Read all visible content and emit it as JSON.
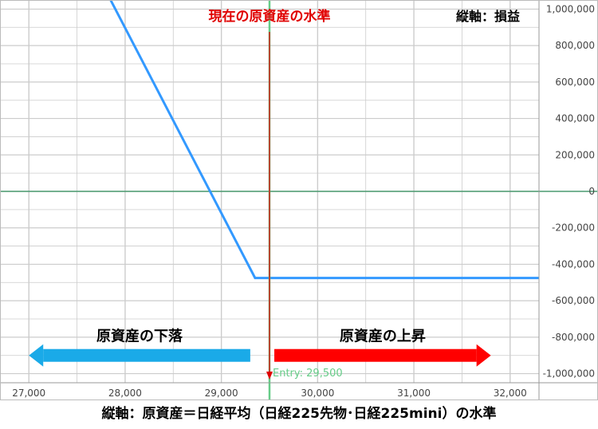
{
  "chart_data": {
    "type": "line",
    "title": "現在の原資産の水準",
    "ylabel": "縦軸：損益",
    "xlabel": "縦軸：原資産＝日経平均（日経225先物･日経225mini）の水準",
    "xlim": [
      26700,
      32300
    ],
    "ylim": [
      -1050000,
      1050000
    ],
    "x_ticks": [
      27000,
      28000,
      29000,
      30000,
      31000,
      32000
    ],
    "x_tick_labels": [
      "27,000",
      "28,000",
      "29,000",
      "30,000",
      "31,000",
      "32,000"
    ],
    "y_ticks": [
      1000000,
      800000,
      600000,
      400000,
      200000,
      0,
      -200000,
      -400000,
      -600000,
      -800000,
      -1000000
    ],
    "y_tick_labels": [
      "1,000,000",
      "800,000",
      "600,000",
      "400,000",
      "200,000",
      "0",
      "-200,000",
      "-400,000",
      "-600,000",
      "-800,000",
      "-1,000,000"
    ],
    "series": [
      {
        "values": [
          [
            27800,
            1100000
          ],
          [
            29350,
            -475000
          ],
          [
            32300,
            -475000
          ]
        ],
        "color": "#3399ff"
      }
    ],
    "entry": {
      "x": 29500,
      "label": "Entry: 29,500",
      "color": "#66cc88"
    },
    "current_level_line": {
      "color": "#e00000"
    },
    "arrows": {
      "down": {
        "label": "原資産の下落",
        "color": "#1aaae8",
        "x_from": 29300,
        "x_to": 27000,
        "y": -900000
      },
      "up": {
        "label": "原資産の上昇",
        "color": "#ff0000",
        "x_from": 29550,
        "x_to": 31800,
        "y": -900000
      }
    },
    "colors": {
      "grid": "#cccccc",
      "zero_line": "#4a9a70",
      "axis": "#999999"
    },
    "grid": true
  }
}
